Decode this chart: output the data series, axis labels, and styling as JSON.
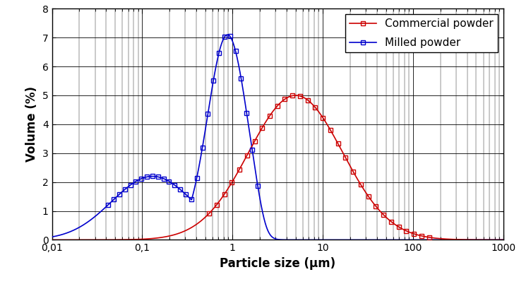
{
  "xlabel": "Particle size (μm)",
  "ylabel": "Volume (%)",
  "xlim": [
    0.01,
    1000
  ],
  "ylim": [
    0,
    8
  ],
  "yticks": [
    0,
    1,
    2,
    3,
    4,
    5,
    6,
    7,
    8
  ],
  "commercial_color": "#CC0000",
  "milled_color": "#0000CC",
  "commercial_label": "Commercial powder",
  "milled_label": "Milled powder",
  "background_color": "#FFFFFF",
  "milled_mu": 0.88,
  "milled_sigma": 0.22,
  "milled_peak": 7.1,
  "milled_shoulder_mu": 0.13,
  "milled_shoulder_sigma": 0.45,
  "milled_shoulder_scale": 2.2,
  "commercial_mu": 5.0,
  "commercial_sigma": 0.52,
  "commercial_peak": 5.0
}
